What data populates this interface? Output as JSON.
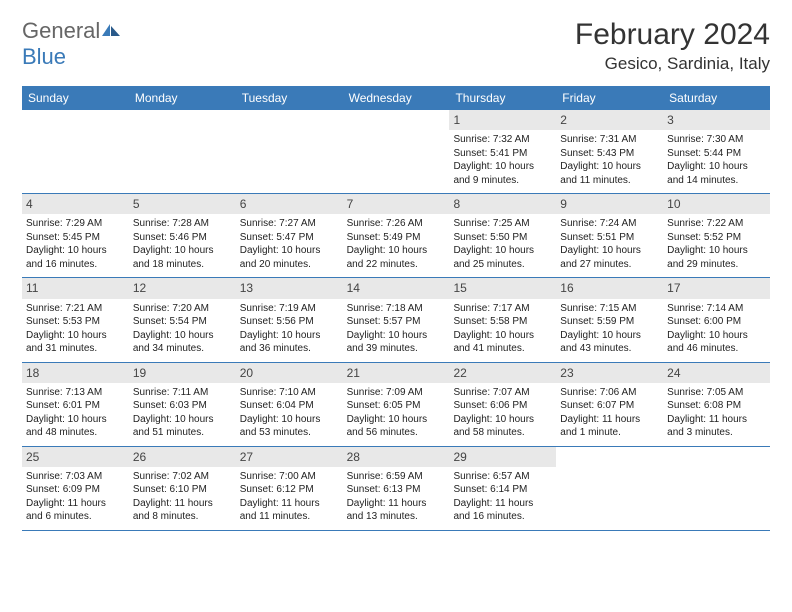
{
  "brand": {
    "name_part1": "General",
    "name_part2": "Blue"
  },
  "title": "February 2024",
  "location": "Gesico, Sardinia, Italy",
  "colors": {
    "header_bg": "#3a7ab8",
    "daynum_bg": "#e8e8e8",
    "text": "#222222",
    "brand_gray": "#666666",
    "brand_blue": "#3a7ab8",
    "week_border": "#3a7ab8"
  },
  "day_headers": [
    "Sunday",
    "Monday",
    "Tuesday",
    "Wednesday",
    "Thursday",
    "Friday",
    "Saturday"
  ],
  "weeks": [
    [
      {
        "empty": true
      },
      {
        "empty": true
      },
      {
        "empty": true
      },
      {
        "empty": true
      },
      {
        "num": "1",
        "sunrise": "7:32 AM",
        "sunset": "5:41 PM",
        "daylight": "10 hours and 9 minutes."
      },
      {
        "num": "2",
        "sunrise": "7:31 AM",
        "sunset": "5:43 PM",
        "daylight": "10 hours and 11 minutes."
      },
      {
        "num": "3",
        "sunrise": "7:30 AM",
        "sunset": "5:44 PM",
        "daylight": "10 hours and 14 minutes."
      }
    ],
    [
      {
        "num": "4",
        "sunrise": "7:29 AM",
        "sunset": "5:45 PM",
        "daylight": "10 hours and 16 minutes."
      },
      {
        "num": "5",
        "sunrise": "7:28 AM",
        "sunset": "5:46 PM",
        "daylight": "10 hours and 18 minutes."
      },
      {
        "num": "6",
        "sunrise": "7:27 AM",
        "sunset": "5:47 PM",
        "daylight": "10 hours and 20 minutes."
      },
      {
        "num": "7",
        "sunrise": "7:26 AM",
        "sunset": "5:49 PM",
        "daylight": "10 hours and 22 minutes."
      },
      {
        "num": "8",
        "sunrise": "7:25 AM",
        "sunset": "5:50 PM",
        "daylight": "10 hours and 25 minutes."
      },
      {
        "num": "9",
        "sunrise": "7:24 AM",
        "sunset": "5:51 PM",
        "daylight": "10 hours and 27 minutes."
      },
      {
        "num": "10",
        "sunrise": "7:22 AM",
        "sunset": "5:52 PM",
        "daylight": "10 hours and 29 minutes."
      }
    ],
    [
      {
        "num": "11",
        "sunrise": "7:21 AM",
        "sunset": "5:53 PM",
        "daylight": "10 hours and 31 minutes."
      },
      {
        "num": "12",
        "sunrise": "7:20 AM",
        "sunset": "5:54 PM",
        "daylight": "10 hours and 34 minutes."
      },
      {
        "num": "13",
        "sunrise": "7:19 AM",
        "sunset": "5:56 PM",
        "daylight": "10 hours and 36 minutes."
      },
      {
        "num": "14",
        "sunrise": "7:18 AM",
        "sunset": "5:57 PM",
        "daylight": "10 hours and 39 minutes."
      },
      {
        "num": "15",
        "sunrise": "7:17 AM",
        "sunset": "5:58 PM",
        "daylight": "10 hours and 41 minutes."
      },
      {
        "num": "16",
        "sunrise": "7:15 AM",
        "sunset": "5:59 PM",
        "daylight": "10 hours and 43 minutes."
      },
      {
        "num": "17",
        "sunrise": "7:14 AM",
        "sunset": "6:00 PM",
        "daylight": "10 hours and 46 minutes."
      }
    ],
    [
      {
        "num": "18",
        "sunrise": "7:13 AM",
        "sunset": "6:01 PM",
        "daylight": "10 hours and 48 minutes."
      },
      {
        "num": "19",
        "sunrise": "7:11 AM",
        "sunset": "6:03 PM",
        "daylight": "10 hours and 51 minutes."
      },
      {
        "num": "20",
        "sunrise": "7:10 AM",
        "sunset": "6:04 PM",
        "daylight": "10 hours and 53 minutes."
      },
      {
        "num": "21",
        "sunrise": "7:09 AM",
        "sunset": "6:05 PM",
        "daylight": "10 hours and 56 minutes."
      },
      {
        "num": "22",
        "sunrise": "7:07 AM",
        "sunset": "6:06 PM",
        "daylight": "10 hours and 58 minutes."
      },
      {
        "num": "23",
        "sunrise": "7:06 AM",
        "sunset": "6:07 PM",
        "daylight": "11 hours and 1 minute."
      },
      {
        "num": "24",
        "sunrise": "7:05 AM",
        "sunset": "6:08 PM",
        "daylight": "11 hours and 3 minutes."
      }
    ],
    [
      {
        "num": "25",
        "sunrise": "7:03 AM",
        "sunset": "6:09 PM",
        "daylight": "11 hours and 6 minutes."
      },
      {
        "num": "26",
        "sunrise": "7:02 AM",
        "sunset": "6:10 PM",
        "daylight": "11 hours and 8 minutes."
      },
      {
        "num": "27",
        "sunrise": "7:00 AM",
        "sunset": "6:12 PM",
        "daylight": "11 hours and 11 minutes."
      },
      {
        "num": "28",
        "sunrise": "6:59 AM",
        "sunset": "6:13 PM",
        "daylight": "11 hours and 13 minutes."
      },
      {
        "num": "29",
        "sunrise": "6:57 AM",
        "sunset": "6:14 PM",
        "daylight": "11 hours and 16 minutes."
      },
      {
        "empty": true
      },
      {
        "empty": true
      }
    ]
  ],
  "labels": {
    "sunrise_prefix": "Sunrise: ",
    "sunset_prefix": "Sunset: ",
    "daylight_prefix": "Daylight: "
  }
}
